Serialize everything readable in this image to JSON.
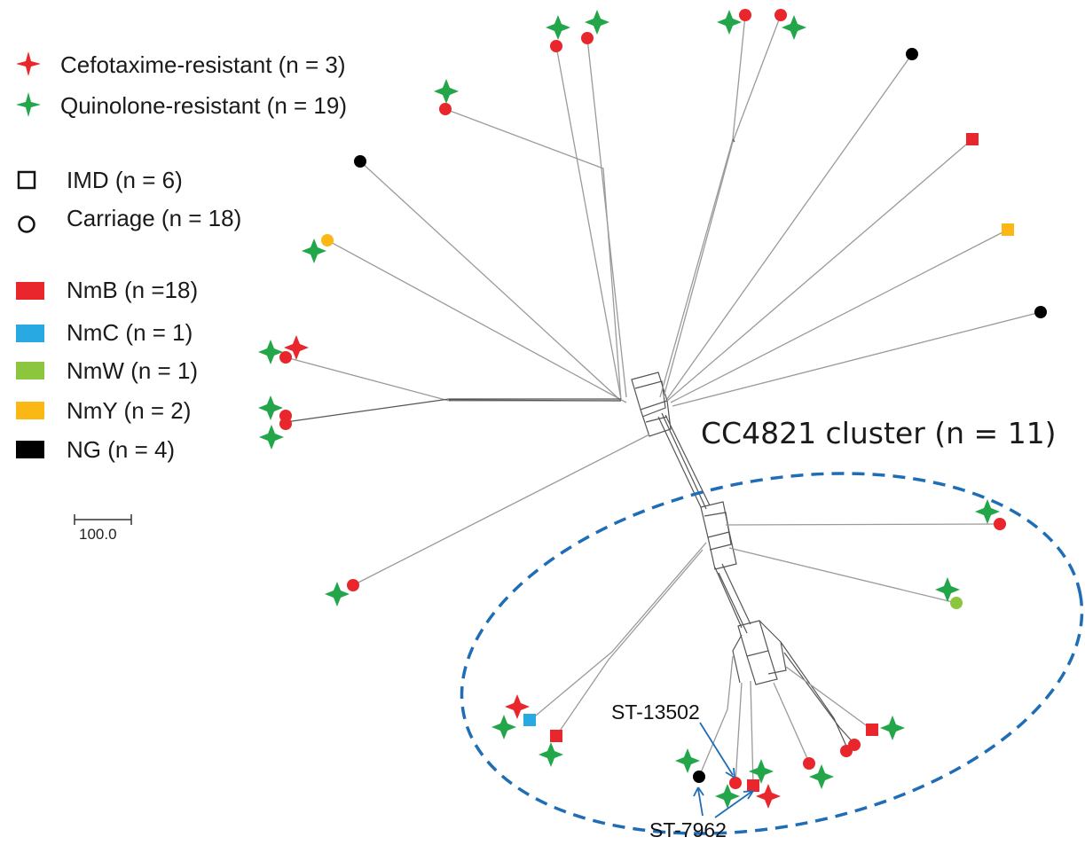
{
  "legend": {
    "resistance": [
      {
        "label": "Cefotaxime-resistant (n = 3)",
        "color": "#e8262b",
        "icon": "star-icon"
      },
      {
        "label": "Quinolone-resistant (n = 19)",
        "color": "#23a64a",
        "icon": "star-icon"
      }
    ],
    "source": [
      {
        "label": "IMD (n = 6)",
        "icon": "square-outline-icon"
      },
      {
        "label": "Carriage (n = 18)",
        "icon": "circle-outline-icon"
      }
    ],
    "serogroups": [
      {
        "label": "NmB (n =18)",
        "color": "#e8262b"
      },
      {
        "label": "NmC (n = 1)",
        "color": "#29a9e1"
      },
      {
        "label": "NmW (n = 1)",
        "color": "#8cc63f"
      },
      {
        "label": "NmY (n = 2)",
        "color": "#fbb714"
      },
      {
        "label": "NG (n = 4)",
        "color": "#000000"
      }
    ]
  },
  "scale_bar": {
    "label": "100.0"
  },
  "cluster": {
    "label": "CC4821 cluster (n = 11)",
    "color": "#1f6db5"
  },
  "annotations": {
    "st13502": "ST-13502",
    "st7962": "ST-7962"
  },
  "colors": {
    "red": "#e8262b",
    "green": "#23a64a",
    "blue": "#29a9e1",
    "lightgreen": "#8cc63f",
    "yellow": "#fbb714",
    "black": "#000000",
    "arrow": "#1f6db5"
  }
}
